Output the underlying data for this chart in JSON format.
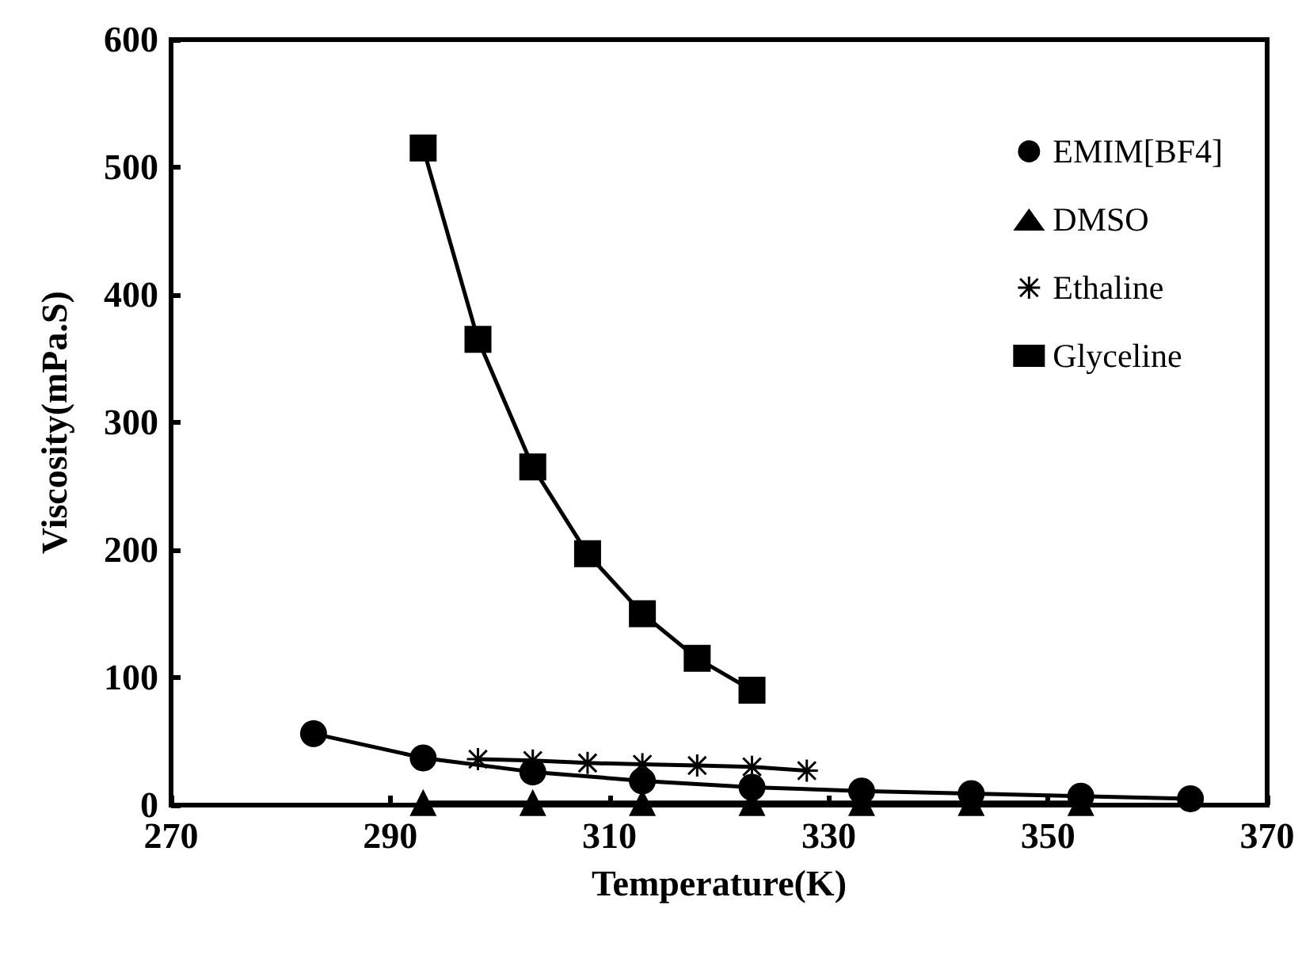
{
  "chart_data": {
    "type": "line",
    "xlabel": "Temperature(K)",
    "ylabel": "Viscosity(mPa.S)",
    "xlim": [
      270,
      370
    ],
    "xticks": [
      270,
      290,
      310,
      330,
      350,
      370
    ],
    "ylim": [
      0,
      600
    ],
    "yticks": [
      0,
      100,
      200,
      300,
      400,
      500,
      600
    ],
    "grid": false,
    "legend": "top right",
    "series": [
      {
        "name": "EMIM[BF4]",
        "color": "#000000",
        "marker": "circle",
        "x": [
          283,
          293,
          303,
          313,
          323,
          333,
          343,
          353,
          363
        ],
        "values": [
          56,
          37,
          26,
          19,
          14,
          11,
          9,
          7,
          5
        ]
      },
      {
        "name": "DMSO",
        "color": "#000000",
        "marker": "triangle",
        "x": [
          293,
          303,
          313,
          323,
          333,
          343,
          353
        ],
        "values": [
          2,
          2,
          2,
          2,
          2,
          2,
          2
        ]
      },
      {
        "name": "Ethaline",
        "color": "#000000",
        "marker": "cross",
        "x": [
          298,
          303,
          308,
          313,
          318,
          323,
          328
        ],
        "values": [
          36,
          35,
          33,
          32,
          31,
          30,
          27
        ]
      },
      {
        "name": "Glyceline",
        "color": "#000000",
        "marker": "square",
        "x": [
          293,
          298,
          303,
          308,
          313,
          318,
          323
        ],
        "values": [
          515,
          365,
          265,
          197,
          150,
          115,
          90
        ]
      }
    ]
  }
}
